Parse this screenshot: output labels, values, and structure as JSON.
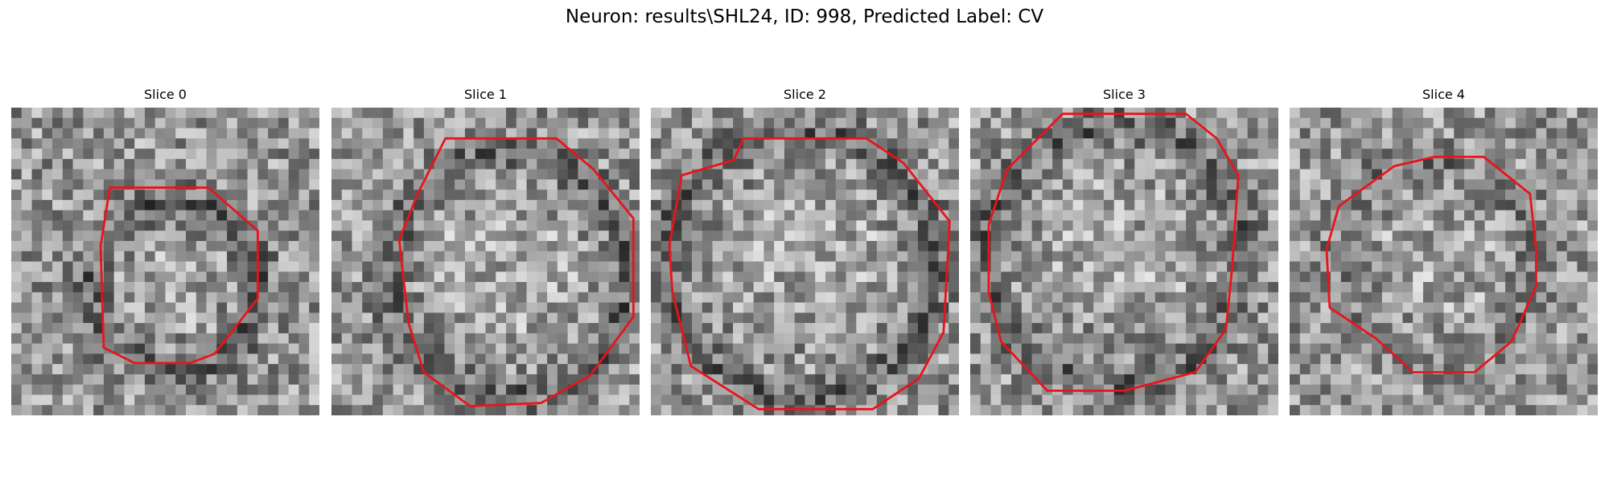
{
  "figure": {
    "title": "Neuron: results\\SHL24, ID: 998, Predicted Label: CV"
  },
  "panels": [
    {
      "title": "Slice 0",
      "seed": 11,
      "ring": "dark",
      "contour": [
        [
          0.32,
          0.26
        ],
        [
          0.64,
          0.26
        ],
        [
          0.8,
          0.4
        ],
        [
          0.8,
          0.62
        ],
        [
          0.66,
          0.8
        ],
        [
          0.58,
          0.83
        ],
        [
          0.4,
          0.83
        ],
        [
          0.3,
          0.78
        ],
        [
          0.29,
          0.45
        ]
      ]
    },
    {
      "title": "Slice 1",
      "seed": 23,
      "ring": "dark",
      "contour": [
        [
          0.37,
          0.1
        ],
        [
          0.73,
          0.1
        ],
        [
          0.85,
          0.2
        ],
        [
          0.98,
          0.36
        ],
        [
          0.98,
          0.68
        ],
        [
          0.84,
          0.87
        ],
        [
          0.68,
          0.96
        ],
        [
          0.45,
          0.97
        ],
        [
          0.3,
          0.86
        ],
        [
          0.25,
          0.7
        ],
        [
          0.22,
          0.43
        ],
        [
          0.28,
          0.28
        ]
      ]
    },
    {
      "title": "Slice 2",
      "seed": 37,
      "ring": "dark",
      "contour": [
        [
          0.27,
          0.17
        ],
        [
          0.3,
          0.1
        ],
        [
          0.7,
          0.1
        ],
        [
          0.82,
          0.18
        ],
        [
          0.97,
          0.37
        ],
        [
          0.95,
          0.73
        ],
        [
          0.87,
          0.88
        ],
        [
          0.72,
          0.98
        ],
        [
          0.35,
          0.98
        ],
        [
          0.13,
          0.84
        ],
        [
          0.07,
          0.6
        ],
        [
          0.06,
          0.45
        ],
        [
          0.1,
          0.22
        ]
      ]
    },
    {
      "title": "Slice 3",
      "seed": 51,
      "ring": "dark",
      "contour": [
        [
          0.3,
          0.02
        ],
        [
          0.7,
          0.02
        ],
        [
          0.8,
          0.1
        ],
        [
          0.87,
          0.22
        ],
        [
          0.85,
          0.52
        ],
        [
          0.83,
          0.72
        ],
        [
          0.73,
          0.86
        ],
        [
          0.5,
          0.92
        ],
        [
          0.25,
          0.92
        ],
        [
          0.1,
          0.76
        ],
        [
          0.06,
          0.6
        ],
        [
          0.06,
          0.38
        ],
        [
          0.12,
          0.2
        ]
      ]
    },
    {
      "title": "Slice 4",
      "seed": 67,
      "ring": "light",
      "contour": [
        [
          0.34,
          0.19
        ],
        [
          0.47,
          0.16
        ],
        [
          0.63,
          0.16
        ],
        [
          0.78,
          0.28
        ],
        [
          0.8,
          0.46
        ],
        [
          0.8,
          0.58
        ],
        [
          0.72,
          0.76
        ],
        [
          0.6,
          0.86
        ],
        [
          0.4,
          0.86
        ],
        [
          0.28,
          0.75
        ],
        [
          0.13,
          0.65
        ],
        [
          0.12,
          0.46
        ],
        [
          0.16,
          0.32
        ]
      ]
    }
  ]
}
